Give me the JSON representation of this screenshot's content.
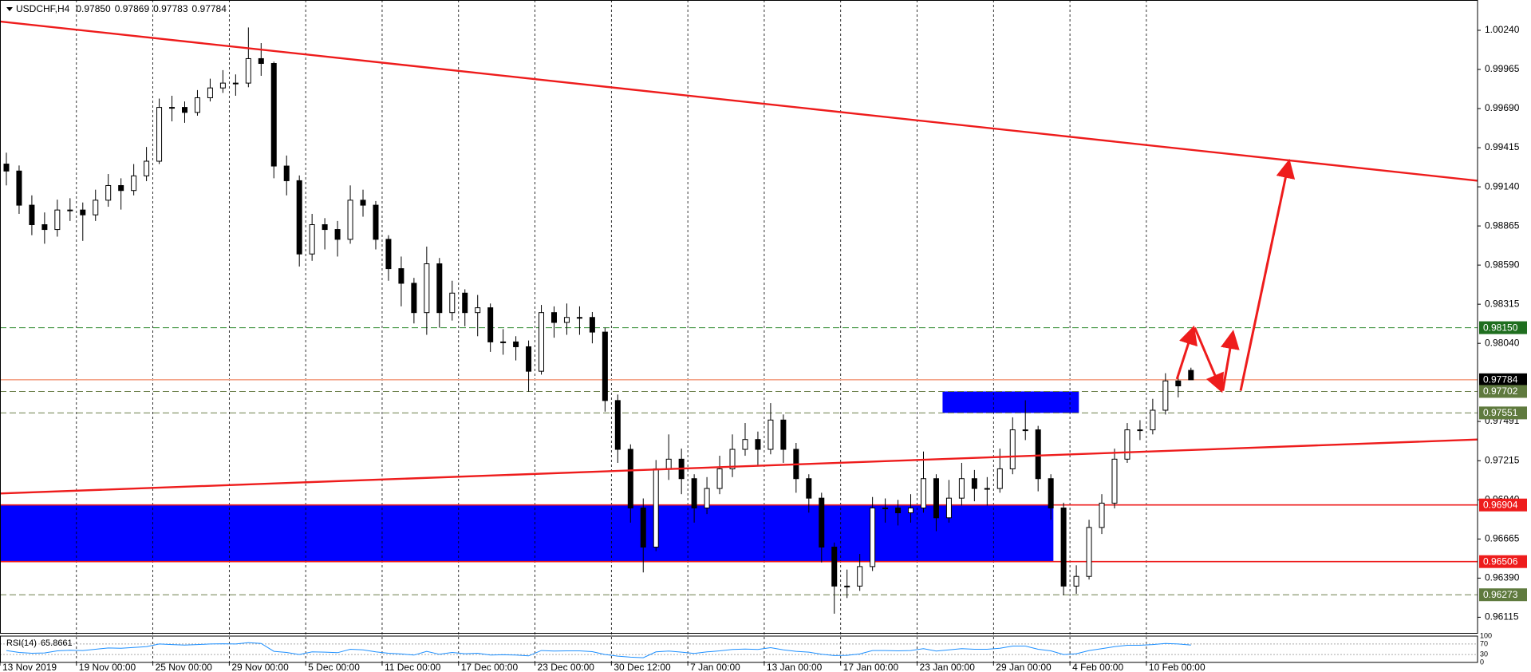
{
  "chart_data": {
    "type": "candlestick",
    "symbol": "USDCHF,H4",
    "quote_labels": [
      "0.97850",
      "0.97869",
      "0.97783",
      "0.97784"
    ],
    "candle_color": "#000000",
    "xlim": [
      0,
      116
    ],
    "ylim": [
      0.96005,
      1.00453
    ],
    "xticks": [
      {
        "value": 0,
        "label": "13 Nov 2019"
      },
      {
        "value": 6,
        "label": "19 Nov 00:00"
      },
      {
        "value": 12,
        "label": "25 Nov 00:00"
      },
      {
        "value": 18,
        "label": "29 Nov 00:00"
      },
      {
        "value": 24,
        "label": "5 Dec 00:00"
      },
      {
        "value": 30,
        "label": "11 Dec 00:00"
      },
      {
        "value": 36,
        "label": "17 Dec 00:00"
      },
      {
        "value": 42,
        "label": "23 Dec 00:00"
      },
      {
        "value": 48,
        "label": "30 Dec 12:00"
      },
      {
        "value": 54,
        "label": "7 Jan 00:00"
      },
      {
        "value": 60,
        "label": "13 Jan 00:00"
      },
      {
        "value": 66,
        "label": "17 Jan 00:00"
      },
      {
        "value": 72,
        "label": "23 Jan 00:00"
      },
      {
        "value": 78,
        "label": "29 Jan 00:00"
      },
      {
        "value": 84,
        "label": "4 Feb 00:00"
      },
      {
        "value": 90,
        "label": "10 Feb 00:00"
      }
    ],
    "yticks": [
      {
        "value": 1.0024,
        "label": "1.00240"
      },
      {
        "value": 0.99965,
        "label": "0.99965"
      },
      {
        "value": 0.9969,
        "label": "0.99690"
      },
      {
        "value": 0.99415,
        "label": "0.99415"
      },
      {
        "value": 0.9914,
        "label": "0.99140"
      },
      {
        "value": 0.98865,
        "label": "0.98865"
      },
      {
        "value": 0.9859,
        "label": "0.98590"
      },
      {
        "value": 0.98315,
        "label": "0.98315"
      },
      {
        "value": 0.9804,
        "label": "0.98040"
      },
      {
        "value": 0.97491,
        "label": "0.97491"
      },
      {
        "value": 0.97215,
        "label": "0.97215"
      },
      {
        "value": 0.9694,
        "label": "0.96940"
      },
      {
        "value": 0.96665,
        "label": "0.96665"
      },
      {
        "value": 0.9639,
        "label": "0.96390"
      },
      {
        "value": 0.96115,
        "label": "0.96115"
      }
    ],
    "open": [
      0.993,
      0.99251,
      0.99011,
      0.98874,
      0.9884,
      0.98977,
      0.98977,
      0.98943,
      0.99046,
      0.99149,
      0.99114,
      0.99217,
      0.9932,
      0.99698,
      0.99698,
      0.99663,
      0.99766,
      0.99835,
      0.99869,
      0.99869,
      1.00041,
      1.00007,
      0.99286,
      0.99183,
      0.98668,
      0.98874,
      0.9884,
      0.98771,
      0.99046,
      0.99011,
      0.98771,
      0.98565,
      0.98462,
      0.98256,
      0.98599,
      0.98256,
      0.98393,
      0.98256,
      0.9829,
      0.9805,
      0.9805,
      0.98016,
      0.97844,
      0.98256,
      0.98187,
      0.98222,
      0.98222,
      0.98119,
      0.97638,
      0.97295,
      0.96883,
      0.96608,
      0.97158,
      0.97226,
      0.97089,
      0.96883,
      0.9702,
      0.97158,
      0.97295,
      0.97364,
      0.97295,
      0.97501,
      0.97295,
      0.97089,
      0.96952,
      0.96608,
      0.96334,
      0.96334,
      0.96471,
      0.96883,
      0.96883,
      0.96849,
      0.96883,
      0.97089,
      0.96814,
      0.96952,
      0.97089,
      0.9702,
      0.9702,
      0.97158,
      0.97432,
      0.97432,
      0.97089,
      0.96883,
      0.96334,
      0.96402,
      0.96746,
      0.96917,
      0.97226,
      0.97432,
      0.97432,
      0.9757,
      0.97776,
      0.9785
    ],
    "high": [
      0.9938,
      0.9929,
      0.9908,
      0.9896,
      0.9905,
      0.9906,
      0.9903,
      0.9912,
      0.9923,
      0.992,
      0.993,
      0.9942,
      0.9976,
      0.9978,
      0.9974,
      0.9982,
      0.999,
      0.9996,
      0.9993,
      1.0026,
      1.0015,
      1.0002,
      0.9936,
      0.9922,
      0.9895,
      0.9892,
      0.989,
      0.9915,
      0.9912,
      0.9904,
      0.988,
      0.9865,
      0.985,
      0.9872,
      0.9864,
      0.9848,
      0.9842,
      0.9838,
      0.9832,
      0.9814,
      0.9809,
      0.9806,
      0.9831,
      0.983,
      0.9832,
      0.983,
      0.9826,
      0.9815,
      0.9768,
      0.9733,
      0.9695,
      0.9722,
      0.974,
      0.973,
      0.9712,
      0.971,
      0.9725,
      0.974,
      0.9748,
      0.9742,
      0.9762,
      0.9754,
      0.9734,
      0.9712,
      0.9699,
      0.9664,
      0.9645,
      0.9656,
      0.9696,
      0.9695,
      0.9694,
      0.9698,
      0.9728,
      0.9712,
      0.9708,
      0.972,
      0.9715,
      0.971,
      0.973,
      0.9752,
      0.9764,
      0.9746,
      0.9712,
      0.9692,
      0.9648,
      0.968,
      0.9698,
      0.973,
      0.9748,
      0.975,
      0.9765,
      0.9783,
      0.9782,
      0.97869
    ],
    "low": [
      0.9915,
      0.9895,
      0.988,
      0.9874,
      0.9879,
      0.989,
      0.9876,
      0.989,
      0.99,
      0.9898,
      0.9908,
      0.9918,
      0.993,
      0.996,
      0.9959,
      0.9964,
      0.9974,
      0.998,
      0.9978,
      0.9984,
      0.9992,
      0.992,
      0.9908,
      0.9858,
      0.9862,
      0.987,
      0.9865,
      0.9874,
      0.9893,
      0.987,
      0.9848,
      0.983,
      0.9818,
      0.981,
      0.9815,
      0.982,
      0.9816,
      0.9809,
      0.9798,
      0.9796,
      0.9792,
      0.977,
      0.9782,
      0.9808,
      0.981,
      0.981,
      0.9804,
      0.9756,
      0.972,
      0.9678,
      0.9643,
      0.9658,
      0.9708,
      0.9698,
      0.9678,
      0.9684,
      0.9698,
      0.971,
      0.9725,
      0.9718,
      0.9726,
      0.972,
      0.9699,
      0.9685,
      0.965,
      0.9614,
      0.9625,
      0.963,
      0.9644,
      0.9678,
      0.9676,
      0.9678,
      0.9685,
      0.9672,
      0.9678,
      0.969,
      0.9693,
      0.969,
      0.9699,
      0.9712,
      0.9736,
      0.97,
      0.968,
      0.9627,
      0.9628,
      0.9638,
      0.967,
      0.9688,
      0.972,
      0.9736,
      0.974,
      0.9754,
      0.9766,
      0.97783
    ],
    "close": [
      0.99251,
      0.99011,
      0.98874,
      0.9884,
      0.98977,
      0.98977,
      0.98943,
      0.99046,
      0.99149,
      0.99114,
      0.99217,
      0.9932,
      0.99698,
      0.99698,
      0.99663,
      0.99766,
      0.99835,
      0.99869,
      0.99869,
      1.00041,
      1.00007,
      0.99286,
      0.99183,
      0.98668,
      0.98874,
      0.9884,
      0.98771,
      0.99046,
      0.99011,
      0.98771,
      0.98565,
      0.98462,
      0.98256,
      0.98599,
      0.98256,
      0.98393,
      0.98256,
      0.9829,
      0.9805,
      0.9805,
      0.98016,
      0.97844,
      0.98256,
      0.98187,
      0.98222,
      0.98222,
      0.98119,
      0.97638,
      0.97295,
      0.96883,
      0.96608,
      0.97158,
      0.97226,
      0.97089,
      0.96883,
      0.9702,
      0.97158,
      0.97295,
      0.97364,
      0.97295,
      0.97501,
      0.97295,
      0.97089,
      0.96952,
      0.96608,
      0.96334,
      0.96334,
      0.96471,
      0.96883,
      0.96883,
      0.96849,
      0.96883,
      0.97089,
      0.96814,
      0.96952,
      0.97089,
      0.9702,
      0.9702,
      0.97158,
      0.97432,
      0.97432,
      0.97089,
      0.96883,
      0.96334,
      0.96402,
      0.96746,
      0.96917,
      0.97226,
      0.97432,
      0.97432,
      0.9757,
      0.97776,
      0.97741,
      0.97784
    ],
    "levels": [
      {
        "value": 0.9815,
        "label": "0.98150",
        "color": "#2e8b2e",
        "dashed": true,
        "label_bg": "#1f6e1f",
        "label_fg": "#ffffff"
      },
      {
        "value": 0.97784,
        "label": "0.97784",
        "color": "#f4a58a",
        "dashed": false,
        "label_bg": "#000000",
        "label_fg": "#ffffff"
      },
      {
        "value": 0.97702,
        "label": "0.97702",
        "color": "#6b7f4a",
        "dashed": true,
        "label_bg": "#5f7a3e",
        "label_fg": "#ffffff"
      },
      {
        "value": 0.97551,
        "label": "0.97551",
        "color": "#6b7f4a",
        "dashed": true,
        "label_bg": "#5f7a3e",
        "label_fg": "#ffffff"
      },
      {
        "value": 0.96904,
        "label": "0.96904",
        "color": "#ee1c1c",
        "dashed": false,
        "label_bg": "#ee1c1c",
        "label_fg": "#ffffff"
      },
      {
        "value": 0.96506,
        "label": "0.96506",
        "color": "#ee1c1c",
        "dashed": false,
        "label_bg": "#ee1c1c",
        "label_fg": "#ffffff"
      },
      {
        "value": 0.96273,
        "label": "0.96273",
        "color": "#6b7f4a",
        "dashed": true,
        "label_bg": "#5f7a3e",
        "label_fg": "#ffffff"
      }
    ],
    "zones": [
      {
        "x": [
          0,
          82.7
        ],
        "y": [
          0.96506,
          0.96904
        ],
        "color": "#0000ff"
      },
      {
        "x": [
          74,
          84.7
        ],
        "y": [
          0.97551,
          0.97702
        ],
        "color": "#0000ff"
      }
    ],
    "trendlines": [
      {
        "x": [
          0,
          116
        ],
        "y": [
          1.00302,
          0.99183
        ],
        "color": "#ee1c1c"
      },
      {
        "x": [
          0,
          116
        ],
        "y": [
          0.96985,
          0.97364
        ],
        "color": "#ee1c1c"
      }
    ],
    "arrows": [
      {
        "x": [
          92.4,
          93.7
        ],
        "y": [
          0.97789,
          0.9815
        ],
        "color": "#ee1c1c"
      },
      {
        "x": [
          93.8,
          95.9
        ],
        "y": [
          0.9815,
          0.97707
        ],
        "color": "#ee1c1c"
      },
      {
        "x": [
          96.0,
          96.8
        ],
        "y": [
          0.97707,
          0.98119
        ],
        "color": "#ee1c1c"
      },
      {
        "x": [
          97.4,
          101.2
        ],
        "y": [
          0.97707,
          0.9932
        ],
        "color": "#ee1c1c"
      }
    ],
    "rsi": {
      "name": "RSI(14)",
      "color": "#1e90ff",
      "ylim": [
        0,
        100
      ],
      "yticks": [
        100,
        70,
        30,
        0
      ],
      "values": [
        45,
        38,
        35,
        36,
        44,
        46,
        45,
        50,
        55,
        54,
        57,
        60,
        70,
        68,
        66,
        68,
        70,
        71,
        70,
        75,
        72,
        42,
        38,
        30,
        40,
        39,
        37,
        50,
        48,
        40,
        35,
        32,
        28,
        42,
        31,
        38,
        33,
        35,
        28,
        29,
        28,
        25,
        45,
        43,
        44,
        44,
        41,
        30,
        24,
        20,
        18,
        40,
        43,
        39,
        34,
        40,
        44,
        49,
        51,
        49,
        56,
        48,
        42,
        39,
        31,
        26,
        27,
        32,
        45,
        45,
        44,
        45,
        52,
        43,
        48,
        52,
        50,
        50,
        54,
        62,
        62,
        50,
        44,
        30,
        33,
        45,
        52,
        60,
        65,
        65,
        68,
        72,
        70,
        65.8661
      ]
    }
  }
}
